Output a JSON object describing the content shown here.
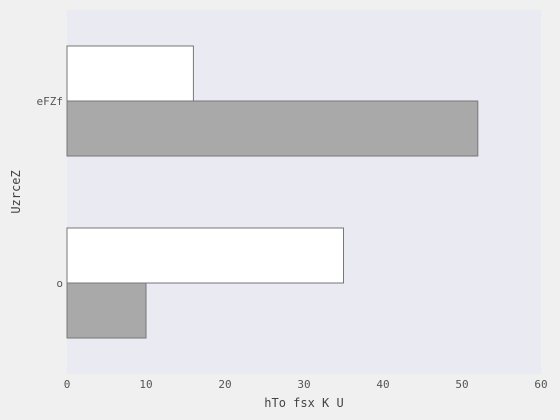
{
  "chart_data": {
    "type": "bar",
    "orientation": "horizontal",
    "categories": [
      "eFZf",
      "o"
    ],
    "series": [
      {
        "values": [
          16,
          35
        ],
        "color": "#ffffff"
      },
      {
        "values": [
          52,
          10
        ],
        "color": "#a9a9a9"
      }
    ],
    "xlabel": "hTo fsx K U",
    "ylabel": "UzrceZ",
    "xlim": [
      0,
      60
    ],
    "xticks": [
      0,
      10,
      20,
      30,
      40,
      50,
      60
    ],
    "grid": false,
    "legend": "none"
  },
  "colors": {
    "figure_background": "#f0f0f0",
    "plot_background": "#eaeaf2",
    "bar_edge": "#777777"
  }
}
